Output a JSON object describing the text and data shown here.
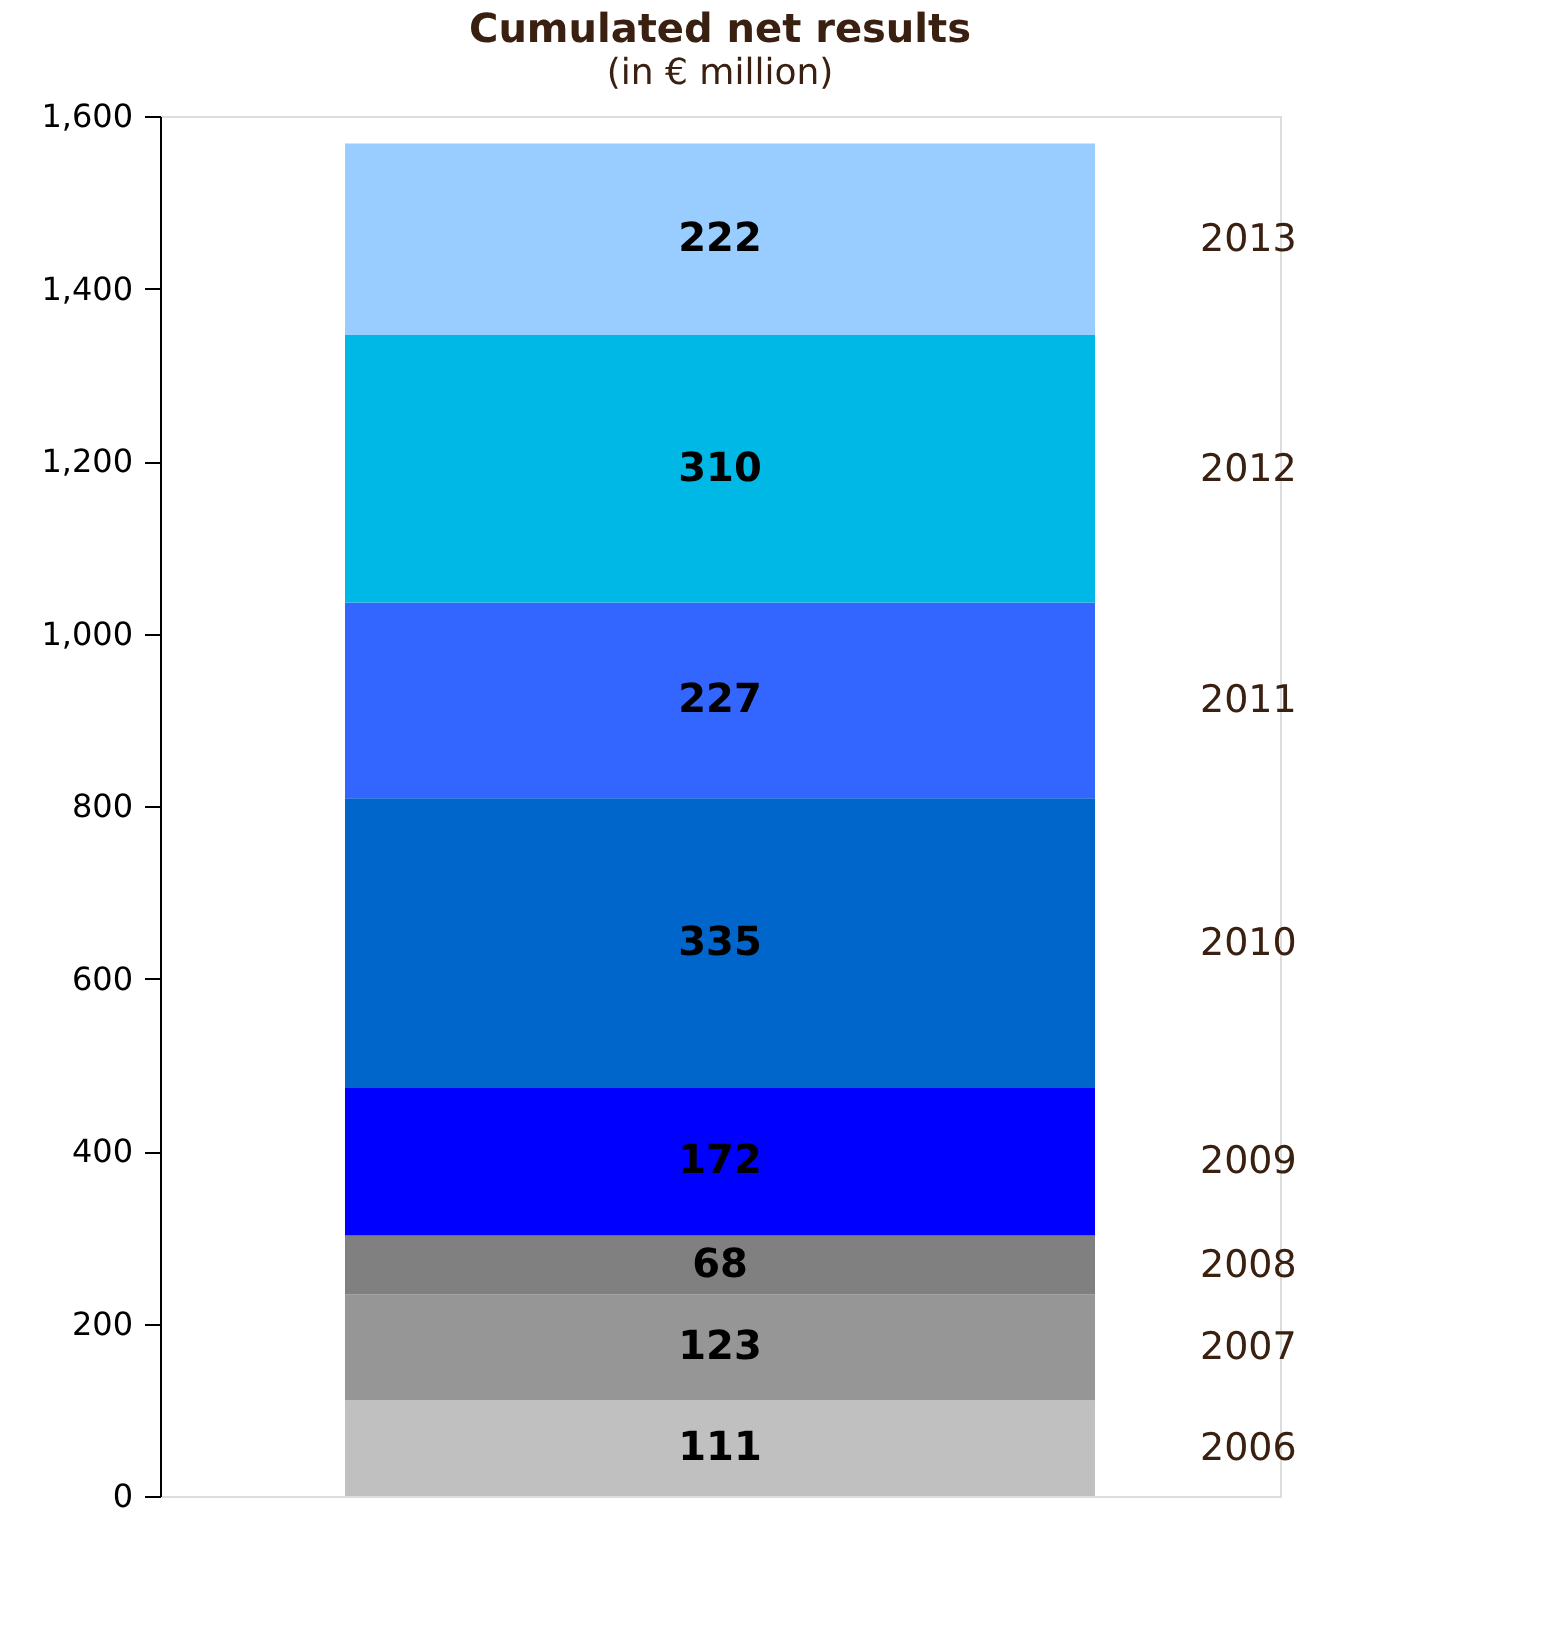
{
  "chart_data": {
    "type": "bar",
    "stacked": true,
    "title": "Cumulated net results",
    "subtitle": "(in € million)",
    "categories": [
      null
    ],
    "series": [
      {
        "name": "2006",
        "color": "#c0c0c0",
        "values": [
          111
        ]
      },
      {
        "name": "2007",
        "color": "#969696",
        "values": [
          123
        ]
      },
      {
        "name": "2008",
        "color": "#808080",
        "values": [
          68
        ]
      },
      {
        "name": "2009",
        "color": "#0000ff",
        "values": [
          172
        ]
      },
      {
        "name": "2010",
        "color": "#0066cc",
        "values": [
          335
        ]
      },
      {
        "name": "2011",
        "color": "#3366ff",
        "values": [
          227
        ]
      },
      {
        "name": "2012",
        "color": "#00b8e6",
        "values": [
          310
        ]
      },
      {
        "name": "2013",
        "color": "#99ccff",
        "values": [
          222
        ]
      }
    ],
    "ylim": [
      0,
      1600
    ],
    "yticks": [
      0,
      200,
      400,
      600,
      800,
      {
        "value": 1000,
        "label": "1,000"
      },
      {
        "value": 1200,
        "label": "1,200"
      },
      {
        "value": 1400,
        "label": "1,400"
      },
      {
        "value": 1600,
        "label": "1,600"
      }
    ],
    "data_labels": true,
    "grid": false
  }
}
